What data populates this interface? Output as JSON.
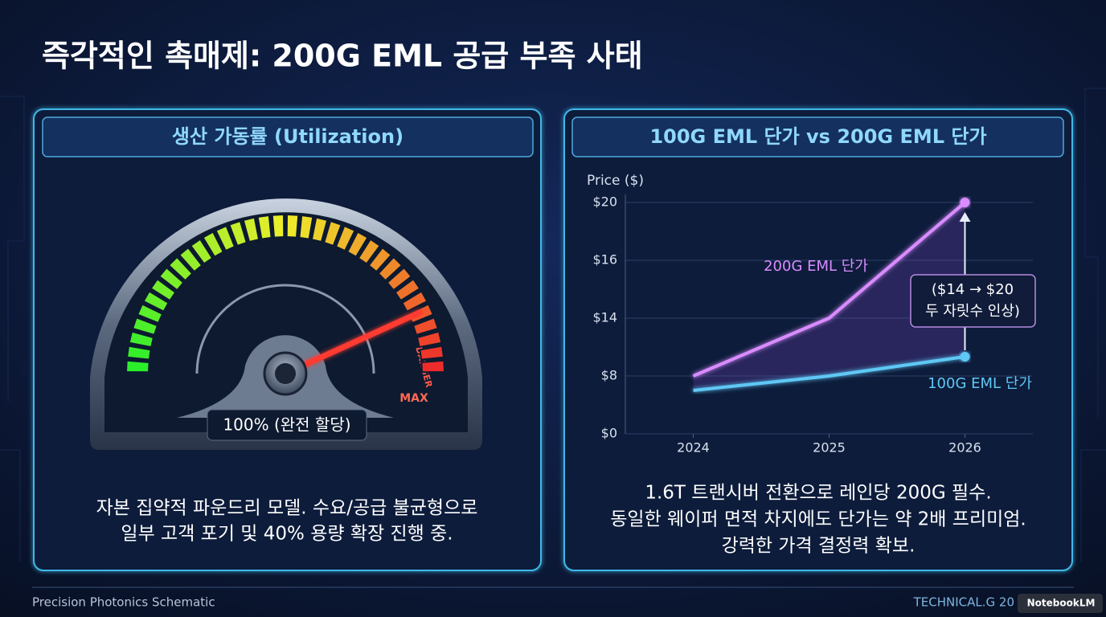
{
  "title": "즉각적인 촉매제: 200G EML 공급 부족 사태",
  "left_panel": {
    "header": "생산 가동률 (Utilization)",
    "gauge": {
      "danger_label": "DANGER",
      "max_label": "MAX",
      "readout": "100% (완전 할당)"
    },
    "caption": [
      "자본 집약적 파운드리 모델. 수요/공급 불균형으로",
      "일부 고객 포기 및 40% 용량 확장 진행 중."
    ]
  },
  "chart_data": {
    "type": "line",
    "title": "100G EML 단가 vs 200G EML 단가",
    "y_label": "Price ($)",
    "x": [
      2024,
      2025,
      2026
    ],
    "xlim": [
      2023.5,
      2026.5
    ],
    "xticks": [
      2024,
      2025,
      2026
    ],
    "ylim": [
      0,
      20
    ],
    "yticks": [
      {
        "value": 0,
        "label": "$0"
      },
      {
        "value": 8,
        "label": "$8"
      },
      {
        "value": 14,
        "label": "$14"
      },
      {
        "value": 16,
        "label": "$16"
      },
      {
        "value": 20,
        "label": "$20"
      }
    ],
    "grid": true,
    "series": [
      {
        "name": "200G EML 단가",
        "color": "#d98cff",
        "values": [
          8,
          14,
          20
        ]
      },
      {
        "name": "100G EML 단가",
        "color": "#5ec8f5",
        "values": [
          6,
          8,
          10
        ]
      }
    ],
    "annotation": [
      "($14 → $20",
      "두 자릿수 인상)"
    ]
  },
  "right_caption": [
    "1.6T 트랜시버 전환으로 레인당 200G 필수.",
    "동일한 웨이퍼 면적 차지에도 단가는 약 2배 프리미엄.",
    "강력한 가격 결정력 확보."
  ],
  "footer": {
    "left": "Precision Photonics Schematic",
    "right": "TECHNICAL.G 20",
    "badge": "NotebookLM"
  }
}
